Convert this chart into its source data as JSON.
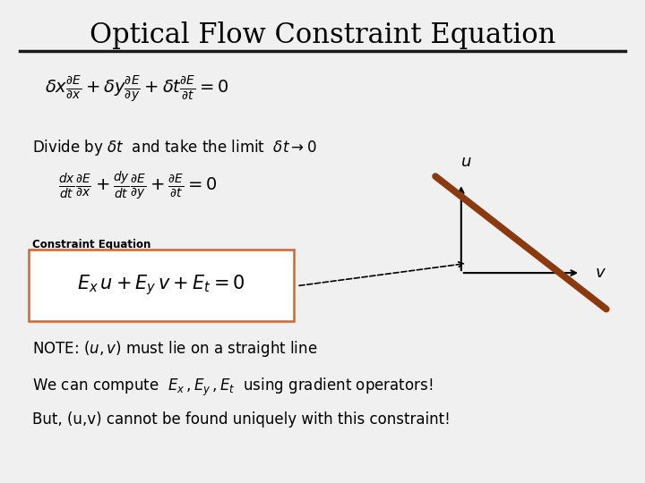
{
  "title": "Optical Flow Constraint Equation",
  "background_color": "#f0f0f0",
  "title_fontsize": 22,
  "line_color": "#1a1a1a",
  "arrow_color": "#8B4513",
  "box_color": "#cc6633",
  "text_color": "#000000",
  "eq1": "\\delta x \\frac{\\partial E}{\\partial x} + \\delta y \\frac{\\partial E}{\\partial y} + \\delta t \\frac{\\partial E}{\\partial t} = 0",
  "divide_text": "Divide by $\\delta t$  and take the limit  $\\delta t \\rightarrow 0$",
  "eq2": "\\frac{dx}{dt} \\frac{\\partial E}{\\partial x} + \\frac{dy}{dt} \\frac{\\partial E}{\\partial y} + \\frac{\\partial E}{\\partial t} = 0",
  "constraint_label": "Constraint Equation",
  "eq3": "E_x\\, u + E_y\\, v + E_t = 0",
  "note_text": "NOTE: $(u, v)$ must lie on a straight line",
  "compute_text": "We can compute  $E_x\\,,E_y\\,,E_t$  using gradient operators!",
  "but_text": "But, (u,v) cannot be found uniquely with this constraint!"
}
